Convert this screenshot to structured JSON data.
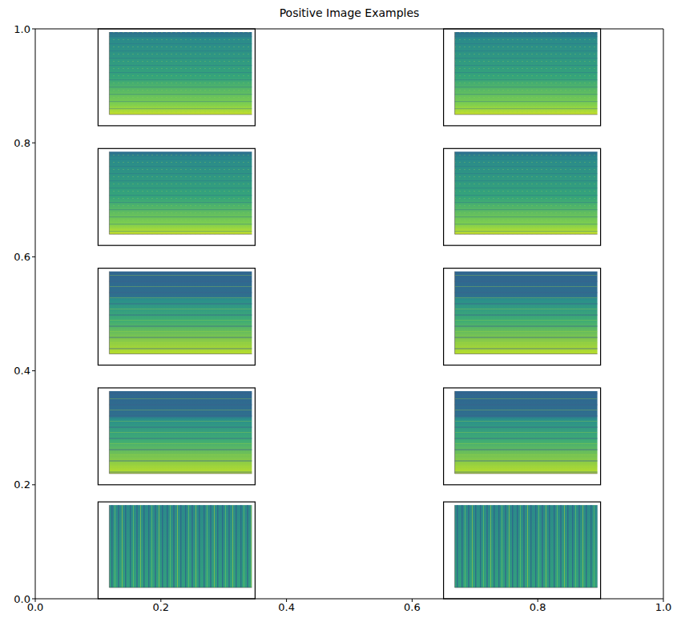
{
  "chart_data": {
    "type": "image_grid",
    "title": "Positive Image Examples",
    "xlim": [
      0,
      1
    ],
    "ylim": [
      0,
      1
    ],
    "xticks": [
      {
        "value": 0,
        "label": "0.0"
      },
      0.2,
      0.4,
      0.6,
      0.8,
      {
        "value": 1,
        "label": "1.0"
      }
    ],
    "yticks": [
      {
        "value": 0,
        "label": "0.0"
      },
      0.2,
      0.4,
      0.6,
      0.8,
      {
        "value": 1,
        "label": "1.0"
      }
    ],
    "images": [
      {
        "x": [
          0.1,
          0.35
        ],
        "y": [
          0.83,
          1.0
        ]
      },
      {
        "x": [
          0.65,
          0.9
        ],
        "y": [
          0.83,
          1.0
        ]
      },
      {
        "x": [
          0.1,
          0.35
        ],
        "y": [
          0.62,
          0.79
        ]
      },
      {
        "x": [
          0.65,
          0.9
        ],
        "y": [
          0.62,
          0.79
        ]
      },
      {
        "x": [
          0.1,
          0.35
        ],
        "y": [
          0.41,
          0.58
        ]
      },
      {
        "x": [
          0.65,
          0.9
        ],
        "y": [
          0.41,
          0.58
        ]
      },
      {
        "x": [
          0.1,
          0.35
        ],
        "y": [
          0.2,
          0.37
        ]
      },
      {
        "x": [
          0.65,
          0.9
        ],
        "y": [
          0.2,
          0.37
        ]
      },
      {
        "x": [
          0.1,
          0.35
        ],
        "y": [
          0.0,
          0.17
        ]
      },
      {
        "x": [
          0.65,
          0.9
        ],
        "y": [
          0.0,
          0.17
        ]
      }
    ]
  }
}
